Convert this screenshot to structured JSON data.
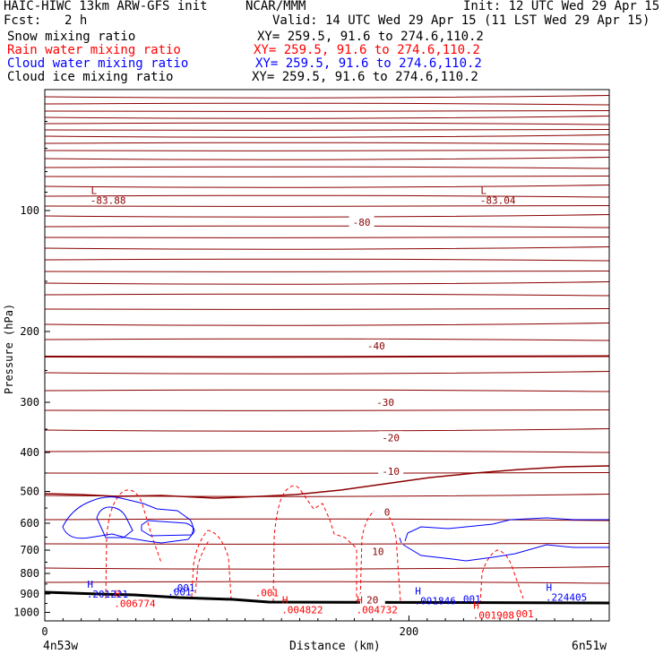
{
  "header": {
    "model": "HAIC-HIWC 13km ARW-GFS init",
    "org": "NCAR/MMM",
    "init": "Init: 12 UTC Wed 29 Apr 15",
    "fcst_label": "Fcst:",
    "fcst_value": "2 h",
    "valid": "Valid: 14 UTC Wed 29 Apr 15 (11 LST Wed 29 Apr 15)"
  },
  "legend": [
    {
      "name": "Snow mixing ratio",
      "xy": "XY= 259.5, 91.6 to 274.6,110.2",
      "color": "#000000"
    },
    {
      "name": "Rain water mixing ratio",
      "xy": "XY= 259.5, 91.6 to 274.6,110.2",
      "color": "#ff0000"
    },
    {
      "name": "Cloud water mixing ratio",
      "xy": "XY= 259.5, 91.6 to 274.6,110.2",
      "color": "#0000ff"
    },
    {
      "name": "Cloud ice mixing ratio",
      "xy": "XY= 259.5, 91.6 to 274.6,110.2",
      "color": "#000000"
    }
  ],
  "chart_data": {
    "type": "contour",
    "ylabel": "Pressure (hPa)",
    "xlabel": "Distance (km)",
    "x_start_label": "4n53w",
    "x_end_label": "6n51w",
    "xlim": [
      0,
      310
    ],
    "ylim": [
      1050,
      50
    ],
    "yscale": "log",
    "xticks": [
      0,
      200
    ],
    "xtick_labels": [
      "0",
      "200"
    ],
    "yticks": [
      100,
      200,
      300,
      400,
      500,
      600,
      700,
      800,
      900,
      1000
    ],
    "ytick_labels": [
      "100",
      "200",
      "300",
      "400",
      "500",
      "600",
      "700",
      "800",
      "900",
      "1000"
    ],
    "colors": {
      "temperature": "#8b0000",
      "rain": "#ff0000",
      "cloud_water": "#0000ff",
      "cloud_ice": "#000000",
      "terrain": "#000000"
    },
    "temperature_contour_labels": [
      {
        "text": "-80",
        "x": 174,
        "p": 107
      },
      {
        "text": "-40",
        "x": 182,
        "p": 217
      },
      {
        "text": "-30",
        "x": 187,
        "p": 300
      },
      {
        "text": "-20",
        "x": 190,
        "p": 367
      },
      {
        "text": "-10",
        "x": 190,
        "p": 445
      },
      {
        "text": "0",
        "x": 188,
        "p": 562
      },
      {
        "text": "10",
        "x": 183,
        "p": 706
      },
      {
        "text": "20",
        "x": 180,
        "p": 930
      }
    ],
    "extrema": [
      {
        "kind": "L",
        "value": "-83.88",
        "x": 25,
        "p": 91,
        "field": "temperature",
        "color": "#8b0000"
      },
      {
        "kind": "L",
        "value": "-83.04",
        "x": 239,
        "p": 91,
        "field": "temperature",
        "color": "#8b0000"
      },
      {
        "kind": "H",
        "value": ".201221",
        "x": 23,
        "p": 868,
        "field": "cloud_water",
        "color": "#0000ff"
      },
      {
        "kind": "H",
        "value": ".006774",
        "x": 38,
        "p": 916,
        "field": "rain",
        "color": "#ff0000"
      },
      {
        "kind": "H",
        "value": ".004822",
        "x": 130,
        "p": 950,
        "field": "rain",
        "color": "#ff0000"
      },
      {
        "kind": "H",
        "value": ".004732",
        "x": 171,
        "p": 950,
        "field": "rain",
        "color": "#ff0000"
      },
      {
        "kind": "H",
        "value": ".091846",
        "x": 203,
        "p": 903,
        "field": "cloud_water",
        "color": "#0000ff"
      },
      {
        "kind": "H",
        "value": ".001908",
        "x": 235,
        "p": 979,
        "field": "rain",
        "color": "#ff0000"
      },
      {
        "kind": "H",
        "value": ".224405",
        "x": 275,
        "p": 885,
        "field": "cloud_water",
        "color": "#0000ff"
      }
    ],
    "contour_value_labels": [
      {
        "text": ".001",
        "x": 76,
        "p": 868,
        "color": "#0000ff"
      },
      {
        "text": ".001",
        "x": 74,
        "p": 889,
        "color": "#0000ff"
      },
      {
        "text": ".001",
        "x": 122,
        "p": 893,
        "color": "#ff0000"
      },
      {
        "text": ".001",
        "x": 233,
        "p": 927,
        "color": "#0000ff"
      },
      {
        "text": ".001",
        "x": 262,
        "p": 1008,
        "color": "#ff0000"
      }
    ]
  }
}
